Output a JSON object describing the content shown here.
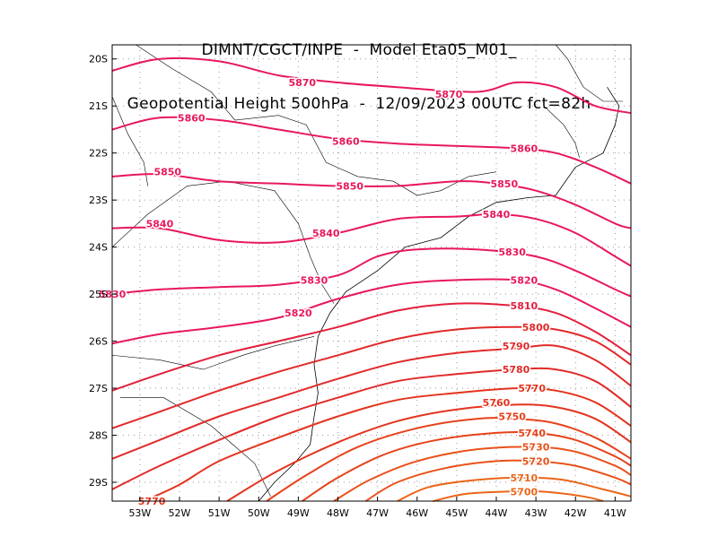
{
  "title": {
    "line1": "DIMNT/CGCT/INPE  -  Model Eta05_M01_",
    "line2": "Geopotential Height 500hPa  -  12/09/2023 00UTC fct=82h"
  },
  "chart_data": {
    "type": "contour",
    "xlim": [
      -53.7,
      -40.6
    ],
    "ylim": [
      -29.4,
      -19.7
    ],
    "x_ticks": [
      -53,
      -52,
      -51,
      -50,
      -49,
      -48,
      -47,
      -46,
      -45,
      -44,
      -43,
      -42,
      -41
    ],
    "x_tick_labels": [
      "53W",
      "52W",
      "51W",
      "50W",
      "49W",
      "48W",
      "47W",
      "46W",
      "45W",
      "44W",
      "43W",
      "42W",
      "41W"
    ],
    "y_ticks": [
      -20,
      -21,
      -22,
      -23,
      -24,
      -25,
      -26,
      -27,
      -28,
      -29
    ],
    "y_tick_labels": [
      "20S",
      "21S",
      "22S",
      "23S",
      "24S",
      "25S",
      "26S",
      "27S",
      "28S",
      "29S"
    ],
    "grid": "dotted",
    "contours": [
      {
        "level": 5870,
        "color": "#e8185a",
        "label": "5870",
        "labels": [
          [
            -48.9,
            -20.5
          ],
          [
            -45.2,
            -20.75
          ]
        ],
        "points": [
          [
            -53.7,
            -20.25
          ],
          [
            -52.5,
            -20.0
          ],
          [
            -51.0,
            -20.05
          ],
          [
            -49.5,
            -20.35
          ],
          [
            -48.0,
            -20.5
          ],
          [
            -46.5,
            -20.6
          ],
          [
            -44.5,
            -20.7
          ],
          [
            -43.5,
            -20.5
          ],
          [
            -42.5,
            -20.6
          ],
          [
            -41.5,
            -21.0
          ],
          [
            -40.6,
            -21.15
          ]
        ]
      },
      {
        "level": 5860,
        "color": "#e8185a",
        "label": "5860",
        "labels": [
          [
            -51.7,
            -21.25
          ],
          [
            -47.8,
            -21.75
          ],
          [
            -43.3,
            -21.9
          ]
        ],
        "points": [
          [
            -53.7,
            -21.5
          ],
          [
            -52.5,
            -21.25
          ],
          [
            -51.0,
            -21.3
          ],
          [
            -49.5,
            -21.5
          ],
          [
            -48.0,
            -21.7
          ],
          [
            -46.5,
            -21.8
          ],
          [
            -45.0,
            -21.85
          ],
          [
            -43.5,
            -21.9
          ],
          [
            -42.5,
            -22.0
          ],
          [
            -41.5,
            -22.3
          ],
          [
            -40.6,
            -22.65
          ]
        ]
      },
      {
        "level": 5850,
        "color": "#e8185a",
        "label": "5850",
        "labels": [
          [
            -52.3,
            -22.4
          ],
          [
            -47.7,
            -22.7
          ],
          [
            -43.8,
            -22.65
          ]
        ],
        "points": [
          [
            -53.7,
            -22.5
          ],
          [
            -52.5,
            -22.45
          ],
          [
            -51.0,
            -22.6
          ],
          [
            -49.5,
            -22.65
          ],
          [
            -48.0,
            -22.7
          ],
          [
            -46.5,
            -22.7
          ],
          [
            -45.0,
            -22.6
          ],
          [
            -44.0,
            -22.65
          ],
          [
            -43.0,
            -22.8
          ],
          [
            -42.0,
            -23.1
          ],
          [
            -41.0,
            -23.5
          ],
          [
            -40.6,
            -23.6
          ]
        ]
      },
      {
        "level": 5840,
        "color": "#e8185a",
        "label": "5840",
        "labels": [
          [
            -52.5,
            -23.5
          ],
          [
            -48.3,
            -23.7
          ],
          [
            -44.0,
            -23.3
          ]
        ],
        "points": [
          [
            -53.7,
            -23.6
          ],
          [
            -52.5,
            -23.6
          ],
          [
            -51.0,
            -23.85
          ],
          [
            -49.5,
            -23.9
          ],
          [
            -48.0,
            -23.7
          ],
          [
            -46.5,
            -23.4
          ],
          [
            -45.0,
            -23.35
          ],
          [
            -44.0,
            -23.3
          ],
          [
            -43.0,
            -23.4
          ],
          [
            -42.0,
            -23.7
          ],
          [
            -41.0,
            -24.2
          ],
          [
            -40.6,
            -24.4
          ]
        ]
      },
      {
        "level": 5830,
        "color": "#e8185a",
        "label": "5830",
        "labels": [
          [
            -53.7,
            -25.0
          ],
          [
            -48.6,
            -24.7
          ],
          [
            -43.6,
            -24.1
          ]
        ],
        "points": [
          [
            -53.7,
            -25.0
          ],
          [
            -52.5,
            -24.9
          ],
          [
            -51.0,
            -24.85
          ],
          [
            -49.5,
            -24.8
          ],
          [
            -48.0,
            -24.6
          ],
          [
            -47.0,
            -24.2
          ],
          [
            -46.0,
            -24.05
          ],
          [
            -44.5,
            -24.05
          ],
          [
            -43.0,
            -24.2
          ],
          [
            -42.0,
            -24.5
          ],
          [
            -41.0,
            -24.9
          ],
          [
            -40.6,
            -25.05
          ]
        ]
      },
      {
        "level": 5820,
        "color": "#e8185a",
        "label": "5820",
        "labels": [
          [
            -49.0,
            -25.4
          ],
          [
            -43.3,
            -24.7
          ]
        ],
        "points": [
          [
            -53.7,
            -26.05
          ],
          [
            -52.5,
            -25.85
          ],
          [
            -51.0,
            -25.7
          ],
          [
            -49.5,
            -25.5
          ],
          [
            -48.0,
            -25.1
          ],
          [
            -46.5,
            -24.8
          ],
          [
            -45.0,
            -24.7
          ],
          [
            -43.5,
            -24.7
          ],
          [
            -42.5,
            -24.9
          ],
          [
            -41.5,
            -25.3
          ],
          [
            -40.6,
            -25.7
          ]
        ]
      },
      {
        "level": 5810,
        "color": "#e31f3c",
        "label": "5810",
        "labels": [
          [
            -43.3,
            -25.25
          ]
        ],
        "points": [
          [
            -53.7,
            -27.05
          ],
          [
            -52.5,
            -26.7
          ],
          [
            -51.0,
            -26.3
          ],
          [
            -49.5,
            -26.0
          ],
          [
            -48.0,
            -25.7
          ],
          [
            -46.5,
            -25.35
          ],
          [
            -45.0,
            -25.2
          ],
          [
            -43.5,
            -25.25
          ],
          [
            -42.5,
            -25.4
          ],
          [
            -41.5,
            -25.8
          ],
          [
            -40.6,
            -26.3
          ]
        ]
      },
      {
        "level": 5800,
        "color": "#e12a2a",
        "label": "5800",
        "labels": [
          [
            -43.0,
            -25.7
          ]
        ],
        "points": [
          [
            -53.7,
            -27.85
          ],
          [
            -52.5,
            -27.5
          ],
          [
            -51.0,
            -27.05
          ],
          [
            -49.5,
            -26.65
          ],
          [
            -48.0,
            -26.3
          ],
          [
            -46.5,
            -25.95
          ],
          [
            -45.0,
            -25.75
          ],
          [
            -43.5,
            -25.7
          ],
          [
            -42.5,
            -25.75
          ],
          [
            -41.5,
            -26.0
          ],
          [
            -40.6,
            -26.5
          ]
        ]
      },
      {
        "level": 5790,
        "color": "#e12a2a",
        "label": "5790",
        "labels": [
          [
            -43.5,
            -26.1
          ]
        ],
        "points": [
          [
            -53.7,
            -28.5
          ],
          [
            -52.5,
            -28.1
          ],
          [
            -51.0,
            -27.6
          ],
          [
            -49.5,
            -27.2
          ],
          [
            -48.0,
            -26.8
          ],
          [
            -46.5,
            -26.45
          ],
          [
            -45.0,
            -26.25
          ],
          [
            -43.5,
            -26.15
          ],
          [
            -42.5,
            -26.1
          ],
          [
            -41.5,
            -26.4
          ],
          [
            -40.6,
            -26.95
          ]
        ]
      },
      {
        "level": 5780,
        "color": "#e12a2a",
        "label": "5780",
        "labels": [
          [
            -43.5,
            -26.6
          ]
        ],
        "points": [
          [
            -53.7,
            -29.15
          ],
          [
            -52.5,
            -28.65
          ],
          [
            -51.0,
            -28.1
          ],
          [
            -49.5,
            -27.6
          ],
          [
            -48.0,
            -27.2
          ],
          [
            -46.5,
            -26.85
          ],
          [
            -45.0,
            -26.7
          ],
          [
            -43.5,
            -26.6
          ],
          [
            -42.5,
            -26.6
          ],
          [
            -41.5,
            -26.85
          ],
          [
            -40.6,
            -27.4
          ]
        ]
      },
      {
        "level": 5770,
        "color": "#e4331e",
        "label": "5770",
        "labels": [
          [
            -52.7,
            -29.4
          ],
          [
            -43.1,
            -27.0
          ]
        ],
        "points": [
          [
            -52.9,
            -29.4
          ],
          [
            -52.0,
            -29.05
          ],
          [
            -51.0,
            -28.55
          ],
          [
            -49.5,
            -28.05
          ],
          [
            -48.0,
            -27.6
          ],
          [
            -46.5,
            -27.25
          ],
          [
            -45.0,
            -27.1
          ],
          [
            -43.5,
            -27.0
          ],
          [
            -42.5,
            -27.05
          ],
          [
            -41.5,
            -27.3
          ],
          [
            -40.6,
            -27.8
          ]
        ]
      },
      {
        "level": 5760,
        "color": "#e4331e",
        "label": "5760",
        "labels": [
          [
            -44.0,
            -27.3
          ]
        ],
        "points": [
          [
            -50.8,
            -29.4
          ],
          [
            -49.5,
            -28.75
          ],
          [
            -48.0,
            -28.15
          ],
          [
            -46.5,
            -27.7
          ],
          [
            -45.0,
            -27.45
          ],
          [
            -43.5,
            -27.35
          ],
          [
            -42.5,
            -27.4
          ],
          [
            -41.5,
            -27.65
          ],
          [
            -40.6,
            -28.15
          ]
        ]
      },
      {
        "level": 5750,
        "color": "#e6421a",
        "label": "5750",
        "labels": [
          [
            -43.6,
            -27.6
          ]
        ],
        "points": [
          [
            -49.8,
            -29.4
          ],
          [
            -48.8,
            -28.85
          ],
          [
            -47.5,
            -28.25
          ],
          [
            -46.0,
            -27.85
          ],
          [
            -44.5,
            -27.65
          ],
          [
            -43.5,
            -27.65
          ],
          [
            -42.5,
            -27.75
          ],
          [
            -41.5,
            -28.05
          ],
          [
            -40.6,
            -28.5
          ]
        ]
      },
      {
        "level": 5740,
        "color": "#e6421a",
        "label": "5740",
        "labels": [
          [
            -43.1,
            -27.95
          ]
        ],
        "points": [
          [
            -48.9,
            -29.4
          ],
          [
            -48.0,
            -28.9
          ],
          [
            -46.8,
            -28.4
          ],
          [
            -45.5,
            -28.1
          ],
          [
            -44.0,
            -27.95
          ],
          [
            -43.0,
            -27.95
          ],
          [
            -42.0,
            -28.1
          ],
          [
            -41.0,
            -28.45
          ],
          [
            -40.6,
            -28.65
          ]
        ]
      },
      {
        "level": 5730,
        "color": "#e8521a",
        "label": "5730",
        "labels": [
          [
            -43.0,
            -28.25
          ]
        ],
        "points": [
          [
            -48.1,
            -29.4
          ],
          [
            -47.2,
            -28.95
          ],
          [
            -46.0,
            -28.55
          ],
          [
            -44.5,
            -28.3
          ],
          [
            -43.0,
            -28.25
          ],
          [
            -42.0,
            -28.35
          ],
          [
            -41.0,
            -28.65
          ],
          [
            -40.6,
            -28.85
          ]
        ]
      },
      {
        "level": 5720,
        "color": "#e8521a",
        "label": "5720",
        "labels": [
          [
            -43.0,
            -28.55
          ]
        ],
        "points": [
          [
            -47.3,
            -29.4
          ],
          [
            -46.5,
            -29.0
          ],
          [
            -45.3,
            -28.7
          ],
          [
            -44.0,
            -28.55
          ],
          [
            -43.0,
            -28.55
          ],
          [
            -42.0,
            -28.65
          ],
          [
            -41.0,
            -28.9
          ],
          [
            -40.6,
            -29.05
          ]
        ]
      },
      {
        "level": 5710,
        "color": "#ea6519",
        "label": "5710",
        "labels": [
          [
            -43.3,
            -28.9
          ]
        ],
        "points": [
          [
            -46.5,
            -29.4
          ],
          [
            -45.7,
            -29.1
          ],
          [
            -44.5,
            -28.95
          ],
          [
            -43.3,
            -28.9
          ],
          [
            -42.3,
            -28.95
          ],
          [
            -41.3,
            -29.15
          ],
          [
            -40.6,
            -29.3
          ]
        ]
      },
      {
        "level": 5700,
        "color": "#ea6519",
        "label": "5700",
        "labels": [
          [
            -43.3,
            -29.2
          ]
        ],
        "points": [
          [
            -45.6,
            -29.4
          ],
          [
            -44.8,
            -29.25
          ],
          [
            -43.8,
            -29.2
          ],
          [
            -42.8,
            -29.2
          ],
          [
            -41.8,
            -29.3
          ],
          [
            -41.3,
            -29.4
          ]
        ]
      }
    ]
  },
  "coastline_color": "#000000"
}
